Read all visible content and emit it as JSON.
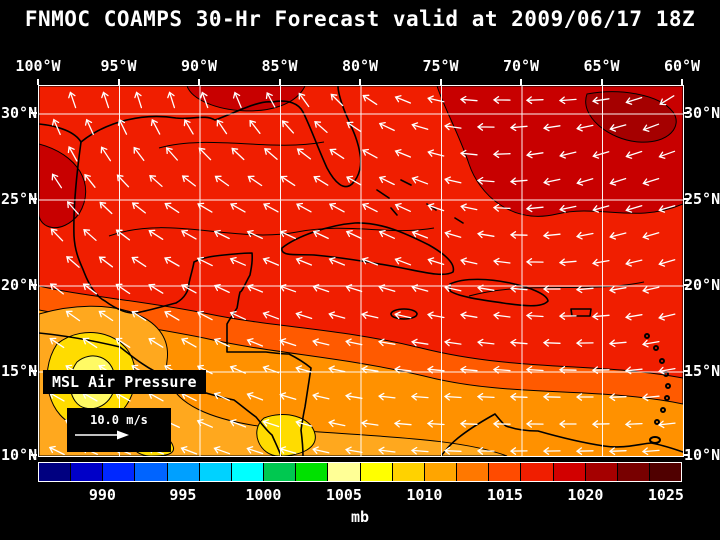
{
  "title": "FNMOC COAMPS 30-Hr Forecast valid at 2009/06/17 18Z",
  "axes": {
    "lon_labels": [
      "100°W",
      "95°W",
      "90°W",
      "85°W",
      "80°W",
      "75°W",
      "70°W",
      "65°W",
      "60°W"
    ],
    "lat_labels": [
      "30°N",
      "25°N",
      "20°N",
      "15°N",
      "10°N"
    ]
  },
  "map": {
    "field_label": "MSL Air Pressure",
    "wind_scale_label": "10.0 m/s"
  },
  "colorbar": {
    "unit": "mb",
    "ticks": [
      "990",
      "995",
      "1000",
      "1005",
      "1010",
      "1015",
      "1020",
      "1025"
    ],
    "tick_values": [
      990,
      995,
      1000,
      1005,
      1010,
      1015,
      1020,
      1025
    ],
    "range": [
      986,
      1026
    ],
    "colors": [
      "#000080",
      "#0000c8",
      "#0028ff",
      "#0064ff",
      "#00a0ff",
      "#00d2ff",
      "#00ffff",
      "#00c850",
      "#00e100",
      "#ffff96",
      "#ffff00",
      "#ffd200",
      "#ffa500",
      "#ff7800",
      "#ff4b00",
      "#f01e00",
      "#d20000",
      "#a50000",
      "#780000",
      "#500000"
    ]
  },
  "theme": {
    "background": "#000000",
    "text": "#ffffff",
    "grid": "#ffffff",
    "coastline": "#000000",
    "wind_arrow": "#ffffff"
  }
}
